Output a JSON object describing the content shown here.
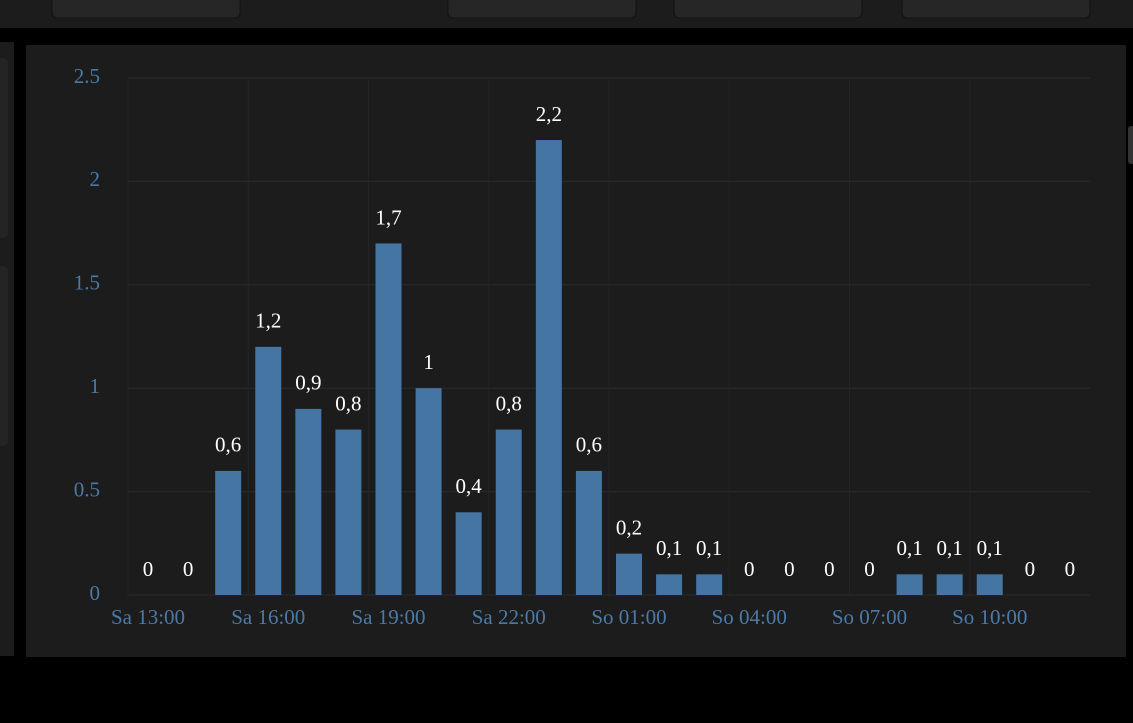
{
  "chart_data": {
    "type": "bar",
    "categories": [
      "Sa 13:00",
      null,
      null,
      "Sa 16:00",
      null,
      null,
      "Sa 19:00",
      null,
      null,
      "Sa 22:00",
      null,
      null,
      "So 01:00",
      null,
      null,
      "So 04:00",
      null,
      null,
      "So 07:00",
      null,
      null,
      "So 10:00",
      null,
      null
    ],
    "values": [
      0,
      0,
      0.6,
      1.2,
      0.9,
      0.8,
      1.7,
      1,
      0.4,
      0.8,
      2.2,
      0.6,
      0.2,
      0.1,
      0.1,
      0,
      0,
      0,
      0,
      0.1,
      0.1,
      0.1,
      0,
      0
    ],
    "value_labels": [
      "0",
      "0",
      "0,6",
      "1,2",
      "0,9",
      "0,8",
      "1,7",
      "1",
      "0,4",
      "0,8",
      "2,2",
      "0,6",
      "0,2",
      "0,1",
      "0,1",
      "0",
      "0",
      "0",
      "0",
      "0,1",
      "0,1",
      "0,1",
      "0",
      "0"
    ],
    "color": "#4575a3",
    "ylim": [
      0,
      2.5
    ],
    "yticks": [
      0,
      0.5,
      1,
      1.5,
      2,
      2.5
    ],
    "grid": true
  }
}
